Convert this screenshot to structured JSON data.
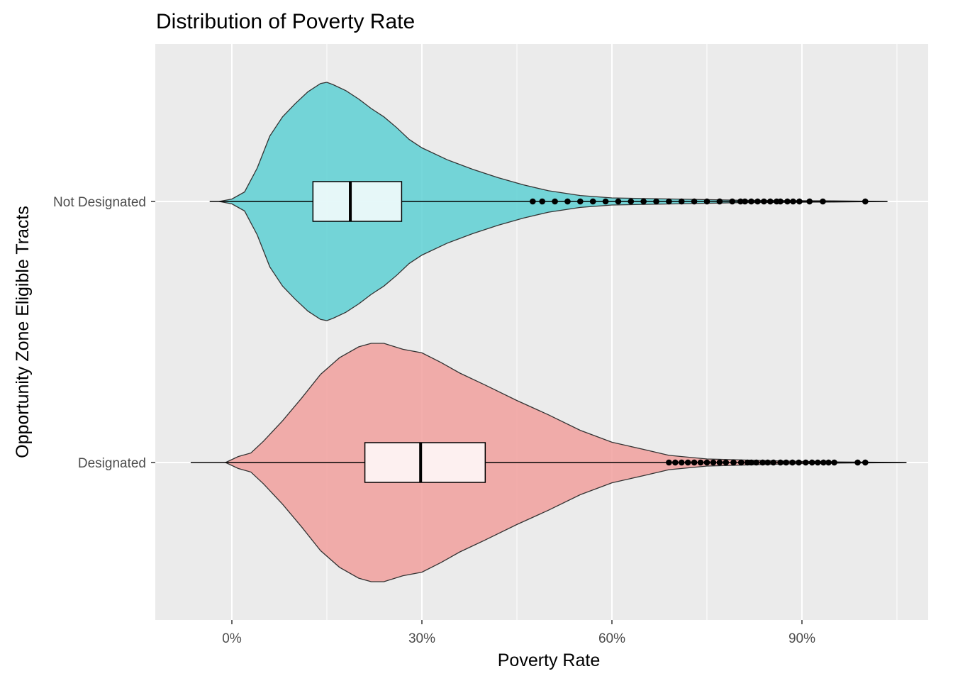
{
  "chart_data": {
    "type": "violin",
    "title": "Distribution of Poverty Rate",
    "xlabel": "Poverty Rate",
    "ylabel": "Opportunity Zone Eligible Tracts",
    "x_unit": "%",
    "xlim": [
      -12,
      110
    ],
    "x_ticks": [
      0,
      30,
      60,
      90
    ],
    "x_tick_labels": [
      "0%",
      "30%",
      "60%",
      "90%"
    ],
    "x_minor_ticks": [
      -15,
      15,
      45,
      75,
      105
    ],
    "categories": [
      "Not Designated",
      "Designated"
    ],
    "grid": true,
    "legend": "none",
    "colors": {
      "panel": "#ebebeb",
      "grid": "#ffffff",
      "Not Designated": "#5ed0d3",
      "Designated": "#f1a09e",
      "outline": "#333333"
    },
    "series": [
      {
        "name": "Not Designated",
        "box": {
          "lower_whisker": -3.5,
          "q1": 12.8,
          "median": 18.7,
          "q3": 26.8,
          "upper_whisker": 103.5
        },
        "violin_range": [
          -2,
          103.5
        ],
        "density_profile": [
          [
            -2,
            0.0
          ],
          [
            0,
            0.02
          ],
          [
            2,
            0.08
          ],
          [
            4,
            0.28
          ],
          [
            6,
            0.55
          ],
          [
            8,
            0.71
          ],
          [
            10,
            0.82
          ],
          [
            12,
            0.92
          ],
          [
            14,
            0.99
          ],
          [
            15,
            1.0
          ],
          [
            16,
            0.98
          ],
          [
            18,
            0.93
          ],
          [
            20,
            0.86
          ],
          [
            22,
            0.78
          ],
          [
            24,
            0.71
          ],
          [
            26,
            0.62
          ],
          [
            28,
            0.52
          ],
          [
            30,
            0.45
          ],
          [
            34,
            0.35
          ],
          [
            38,
            0.27
          ],
          [
            42,
            0.2
          ],
          [
            46,
            0.14
          ],
          [
            50,
            0.09
          ],
          [
            55,
            0.05
          ],
          [
            60,
            0.03
          ],
          [
            70,
            0.02
          ],
          [
            80,
            0.01
          ],
          [
            95,
            0.005
          ],
          [
            103.5,
            0.0
          ]
        ],
        "outliers": [
          47.5,
          49,
          51,
          53,
          55,
          57,
          59,
          61,
          63,
          65,
          67,
          69,
          71,
          73,
          75,
          77,
          79,
          80.3,
          81,
          82,
          83,
          84,
          85,
          86,
          86.6,
          87.7,
          88.6,
          89.6,
          91.2,
          93.3,
          100
        ]
      },
      {
        "name": "Designated",
        "box": {
          "lower_whisker": -6.5,
          "q1": 21.0,
          "median": 29.8,
          "q3": 40.0,
          "upper_whisker": 106.5
        },
        "violin_range": [
          -1,
          106.5
        ],
        "density_profile": [
          [
            -1,
            0.0
          ],
          [
            1,
            0.05
          ],
          [
            3,
            0.08
          ],
          [
            5,
            0.18
          ],
          [
            8,
            0.35
          ],
          [
            11,
            0.54
          ],
          [
            14,
            0.74
          ],
          [
            17,
            0.88
          ],
          [
            20,
            0.97
          ],
          [
            22,
            1.0
          ],
          [
            24,
            1.0
          ],
          [
            27,
            0.95
          ],
          [
            30,
            0.92
          ],
          [
            33,
            0.84
          ],
          [
            36,
            0.75
          ],
          [
            40,
            0.65
          ],
          [
            45,
            0.52
          ],
          [
            50,
            0.4
          ],
          [
            55,
            0.27
          ],
          [
            60,
            0.17
          ],
          [
            65,
            0.11
          ],
          [
            69,
            0.06
          ],
          [
            75,
            0.03
          ],
          [
            85,
            0.015
          ],
          [
            95,
            0.005
          ],
          [
            106.5,
            0.0
          ]
        ],
        "outliers": [
          69,
          70,
          71,
          72,
          73,
          74,
          75,
          76,
          77,
          78,
          79.2,
          80.4,
          81.4,
          82,
          82.8,
          83.8,
          84.6,
          85.5,
          86.6,
          87.5,
          88.5,
          89.5,
          90.6,
          91.6,
          92.5,
          93.4,
          94.2,
          95.1,
          98.8,
          100
        ]
      }
    ]
  }
}
